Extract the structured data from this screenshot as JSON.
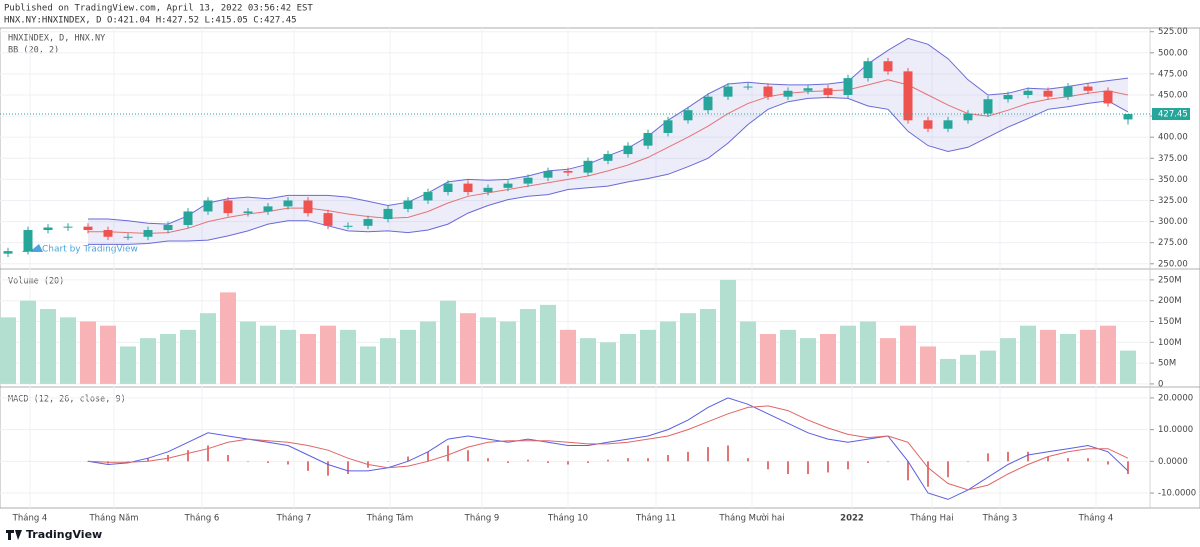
{
  "header": {
    "published": "Published on TradingView.com, April 13, 2022 03:56:42 EST",
    "symbol_line": "HNX.NY:HNXINDEX, D O:421.04 H:427.52 L:415.05 C:427.45"
  },
  "chart_data": [
    {
      "type": "candlestick",
      "title": "HNXINDEX, D, HNX.NY",
      "indicator": "BB (20, 2)",
      "watermark": "Chart by TradingView",
      "xlim": [
        -0.4,
        57.1
      ],
      "xticks": [
        {
          "value": 1.1,
          "label": "Tháng 4"
        },
        {
          "value": 5.3,
          "label": "Tháng Năm"
        },
        {
          "value": 9.7,
          "label": "Tháng 6"
        },
        {
          "value": 14.3,
          "label": "Tháng 7"
        },
        {
          "value": 19.1,
          "label": "Tháng Tám"
        },
        {
          "value": 23.7,
          "label": "Tháng 9"
        },
        {
          "value": 28.0,
          "label": "Tháng 10"
        },
        {
          "value": 32.4,
          "label": "Tháng 11"
        },
        {
          "value": 37.2,
          "label": "Tháng Mười hai"
        },
        {
          "value": 42.2,
          "label": "2022"
        },
        {
          "value": 46.2,
          "label": "Tháng Hai"
        },
        {
          "value": 49.6,
          "label": "Tháng 3"
        },
        {
          "value": 54.4,
          "label": "Tháng 4"
        }
      ],
      "open": [
        262,
        265,
        290,
        293,
        294,
        290,
        282,
        282,
        290,
        296,
        312,
        325,
        310,
        312,
        318,
        325,
        310,
        295,
        295,
        303,
        315,
        325,
        335,
        345,
        335,
        340,
        345,
        352,
        360,
        358,
        372,
        380,
        390,
        405,
        420,
        432,
        448,
        460,
        460,
        448,
        455,
        458,
        450,
        470,
        490,
        478,
        420,
        410,
        420,
        428,
        445,
        450,
        455,
        448,
        460,
        455,
        421.04
      ],
      "high": [
        269,
        294,
        297,
        298,
        298,
        294,
        286,
        294,
        300,
        316,
        329,
        329,
        316,
        322,
        329,
        329,
        314,
        299,
        307,
        319,
        329,
        339,
        349,
        349,
        344,
        349,
        356,
        364,
        364,
        376,
        384,
        394,
        409,
        424,
        436,
        452,
        464,
        464,
        464,
        459,
        462,
        462,
        474,
        494,
        494,
        482,
        424,
        424,
        432,
        449,
        454,
        459,
        459,
        464,
        464,
        459,
        427.52
      ],
      "low": [
        258,
        261,
        286,
        289,
        286,
        278,
        278,
        278,
        286,
        292,
        308,
        306,
        306,
        308,
        314,
        306,
        291,
        291,
        291,
        299,
        311,
        321,
        331,
        331,
        331,
        336,
        341,
        348,
        354,
        354,
        368,
        376,
        386,
        401,
        416,
        428,
        444,
        456,
        444,
        444,
        451,
        446,
        446,
        466,
        474,
        416,
        406,
        406,
        416,
        424,
        441,
        446,
        444,
        444,
        451,
        436,
        415.05
      ],
      "close": [
        265,
        290,
        293,
        294,
        290,
        282,
        282,
        290,
        296,
        312,
        325,
        310,
        312,
        318,
        325,
        310,
        295,
        295,
        303,
        315,
        325,
        335,
        345,
        335,
        340,
        345,
        352,
        360,
        358,
        372,
        380,
        390,
        405,
        420,
        432,
        448,
        460,
        460,
        448,
        455,
        458,
        450,
        470,
        490,
        478,
        420,
        410,
        420,
        428,
        445,
        450,
        455,
        448,
        460,
        455,
        440,
        427.45
      ],
      "bb": {
        "upper": [
          null,
          null,
          null,
          null,
          303,
          303,
          301,
          298,
          297,
          307,
          322,
          327,
          329,
          327,
          331,
          331,
          331,
          329,
          324,
          319,
          323,
          334,
          347,
          350,
          349,
          350,
          354,
          360,
          362,
          368,
          378,
          387,
          401,
          420,
          435,
          451,
          463,
          465,
          463,
          462,
          462,
          463,
          466,
          487,
          503,
          517,
          510,
          493,
          468,
          450,
          452,
          458,
          457,
          460,
          464,
          467,
          470
        ],
        "middle": [
          null,
          null,
          null,
          null,
          288,
          288,
          287,
          286,
          287,
          292,
          300,
          305,
          309,
          312,
          316,
          316,
          313,
          309,
          306,
          304,
          305,
          312,
          322,
          330,
          334,
          338,
          342,
          346,
          350,
          354,
          360,
          367,
          376,
          388,
          400,
          413,
          428,
          440,
          448,
          452,
          454,
          455,
          456,
          462,
          468,
          462,
          450,
          438,
          428,
          425,
          432,
          440,
          445,
          448,
          452,
          455,
          450
        ],
        "lower": [
          null,
          null,
          null,
          null,
          273,
          273,
          273,
          274,
          277,
          277,
          278,
          283,
          289,
          297,
          301,
          301,
          295,
          289,
          288,
          289,
          287,
          290,
          297,
          310,
          319,
          326,
          330,
          332,
          338,
          340,
          342,
          347,
          351,
          356,
          365,
          375,
          393,
          415,
          433,
          442,
          446,
          447,
          446,
          437,
          433,
          407,
          390,
          383,
          388,
          400,
          412,
          422,
          433,
          436,
          440,
          443,
          430
        ]
      },
      "up_color": "#26a69a",
      "down_color": "#ef5350",
      "band_color": "#6a6ad8",
      "basis_color": "#e57373",
      "ylim": [
        245,
        527
      ],
      "yticks": [
        {
          "value": 250,
          "label": "250.00"
        },
        {
          "value": 275,
          "label": "275.00"
        },
        {
          "value": 300,
          "label": "300.00"
        },
        {
          "value": 325,
          "label": "325.00"
        },
        {
          "value": 350,
          "label": "350.00"
        },
        {
          "value": 375,
          "label": "375.00"
        },
        {
          "value": 400,
          "label": "400.00"
        },
        {
          "value": 425,
          "label": "425.00"
        },
        {
          "value": 450,
          "label": "450.00"
        },
        {
          "value": 475,
          "label": "475.00"
        },
        {
          "value": 500,
          "label": "500.00"
        },
        {
          "value": 525,
          "label": "525.00"
        }
      ],
      "last_price": {
        "value": 427.45,
        "label": "427.45"
      },
      "grid": true
    },
    {
      "type": "volume",
      "title": "Volume (20)",
      "values": [
        160,
        200,
        180,
        160,
        150,
        140,
        90,
        110,
        120,
        130,
        170,
        220,
        150,
        140,
        130,
        120,
        140,
        130,
        90,
        110,
        130,
        150,
        200,
        170,
        160,
        150,
        180,
        190,
        130,
        110,
        100,
        120,
        130,
        150,
        170,
        180,
        250,
        150,
        120,
        130,
        110,
        120,
        140,
        150,
        110,
        140,
        90,
        60,
        70,
        80,
        110,
        140,
        130,
        120,
        130,
        140,
        80
      ],
      "up_color": "#b2dfcf",
      "down_color": "#f7b3b5",
      "ylim": [
        -5,
        269
      ],
      "yticks": [
        0,
        {
          "value": 50,
          "label": "50M"
        },
        {
          "value": 100,
          "label": "100M"
        },
        {
          "value": 150,
          "label": "150M"
        },
        {
          "value": 200,
          "label": "200M"
        },
        {
          "value": 250,
          "label": "250M"
        }
      ],
      "grid": true
    },
    {
      "type": "macd",
      "title": "MACD (12, 26, close, 9)",
      "macd": [
        null,
        null,
        null,
        null,
        0,
        -1,
        -0.5,
        1,
        3,
        6,
        9,
        8,
        7,
        6,
        5,
        2,
        -1,
        -3,
        -3,
        -2,
        0,
        3,
        7,
        8,
        7,
        6,
        7,
        6,
        5,
        5,
        6,
        7,
        8,
        10,
        13,
        17,
        20,
        18,
        15,
        12,
        9,
        7,
        6,
        7,
        8,
        0,
        -10,
        -12,
        -9,
        -5,
        -1,
        2,
        3,
        4,
        5,
        3,
        -3
      ],
      "signal": [
        null,
        null,
        null,
        null,
        0,
        -0.3,
        -0.3,
        0,
        1,
        2.5,
        4,
        6,
        7,
        6.5,
        6,
        5,
        3.5,
        1,
        -1,
        -2,
        -1.5,
        0,
        2,
        4.5,
        6,
        6.5,
        6.5,
        6.5,
        6,
        5.5,
        5.5,
        6,
        7,
        8,
        10,
        12.5,
        15,
        17,
        17.5,
        16,
        13,
        10.5,
        8.5,
        7.5,
        8,
        6,
        -2,
        -7,
        -9,
        -7.5,
        -4,
        -1,
        1.5,
        3,
        4,
        4,
        1
      ],
      "histogram": [
        null,
        null,
        null,
        null,
        0,
        -0.7,
        -0.2,
        1,
        2,
        3.5,
        5,
        2,
        0,
        -0.5,
        -1,
        -3,
        -4.5,
        -4,
        -2,
        0,
        1.5,
        3,
        5,
        3.5,
        1,
        -0.5,
        0.5,
        -0.5,
        -1,
        -0.5,
        0.5,
        1,
        1,
        2,
        3,
        4.5,
        5,
        1,
        -2.5,
        -4,
        -4,
        -3.5,
        -2.5,
        -0.5,
        0,
        -6,
        -8,
        -5,
        0,
        2.5,
        3,
        3,
        1.5,
        1,
        1,
        -1,
        -4
      ],
      "macd_color": "#5b5fe0",
      "signal_color": "#e06666",
      "histogram_color": "#e57373",
      "ylim": [
        -14.4,
        22.5
      ],
      "yticks": [
        {
          "value": -10,
          "label": "-10.0000"
        },
        {
          "value": 0,
          "label": "0.0000"
        },
        {
          "value": 10,
          "label": "10.0000"
        },
        {
          "value": 20,
          "label": "20.0000"
        }
      ],
      "grid": true
    }
  ],
  "footer": {
    "brand": "TradingView"
  }
}
